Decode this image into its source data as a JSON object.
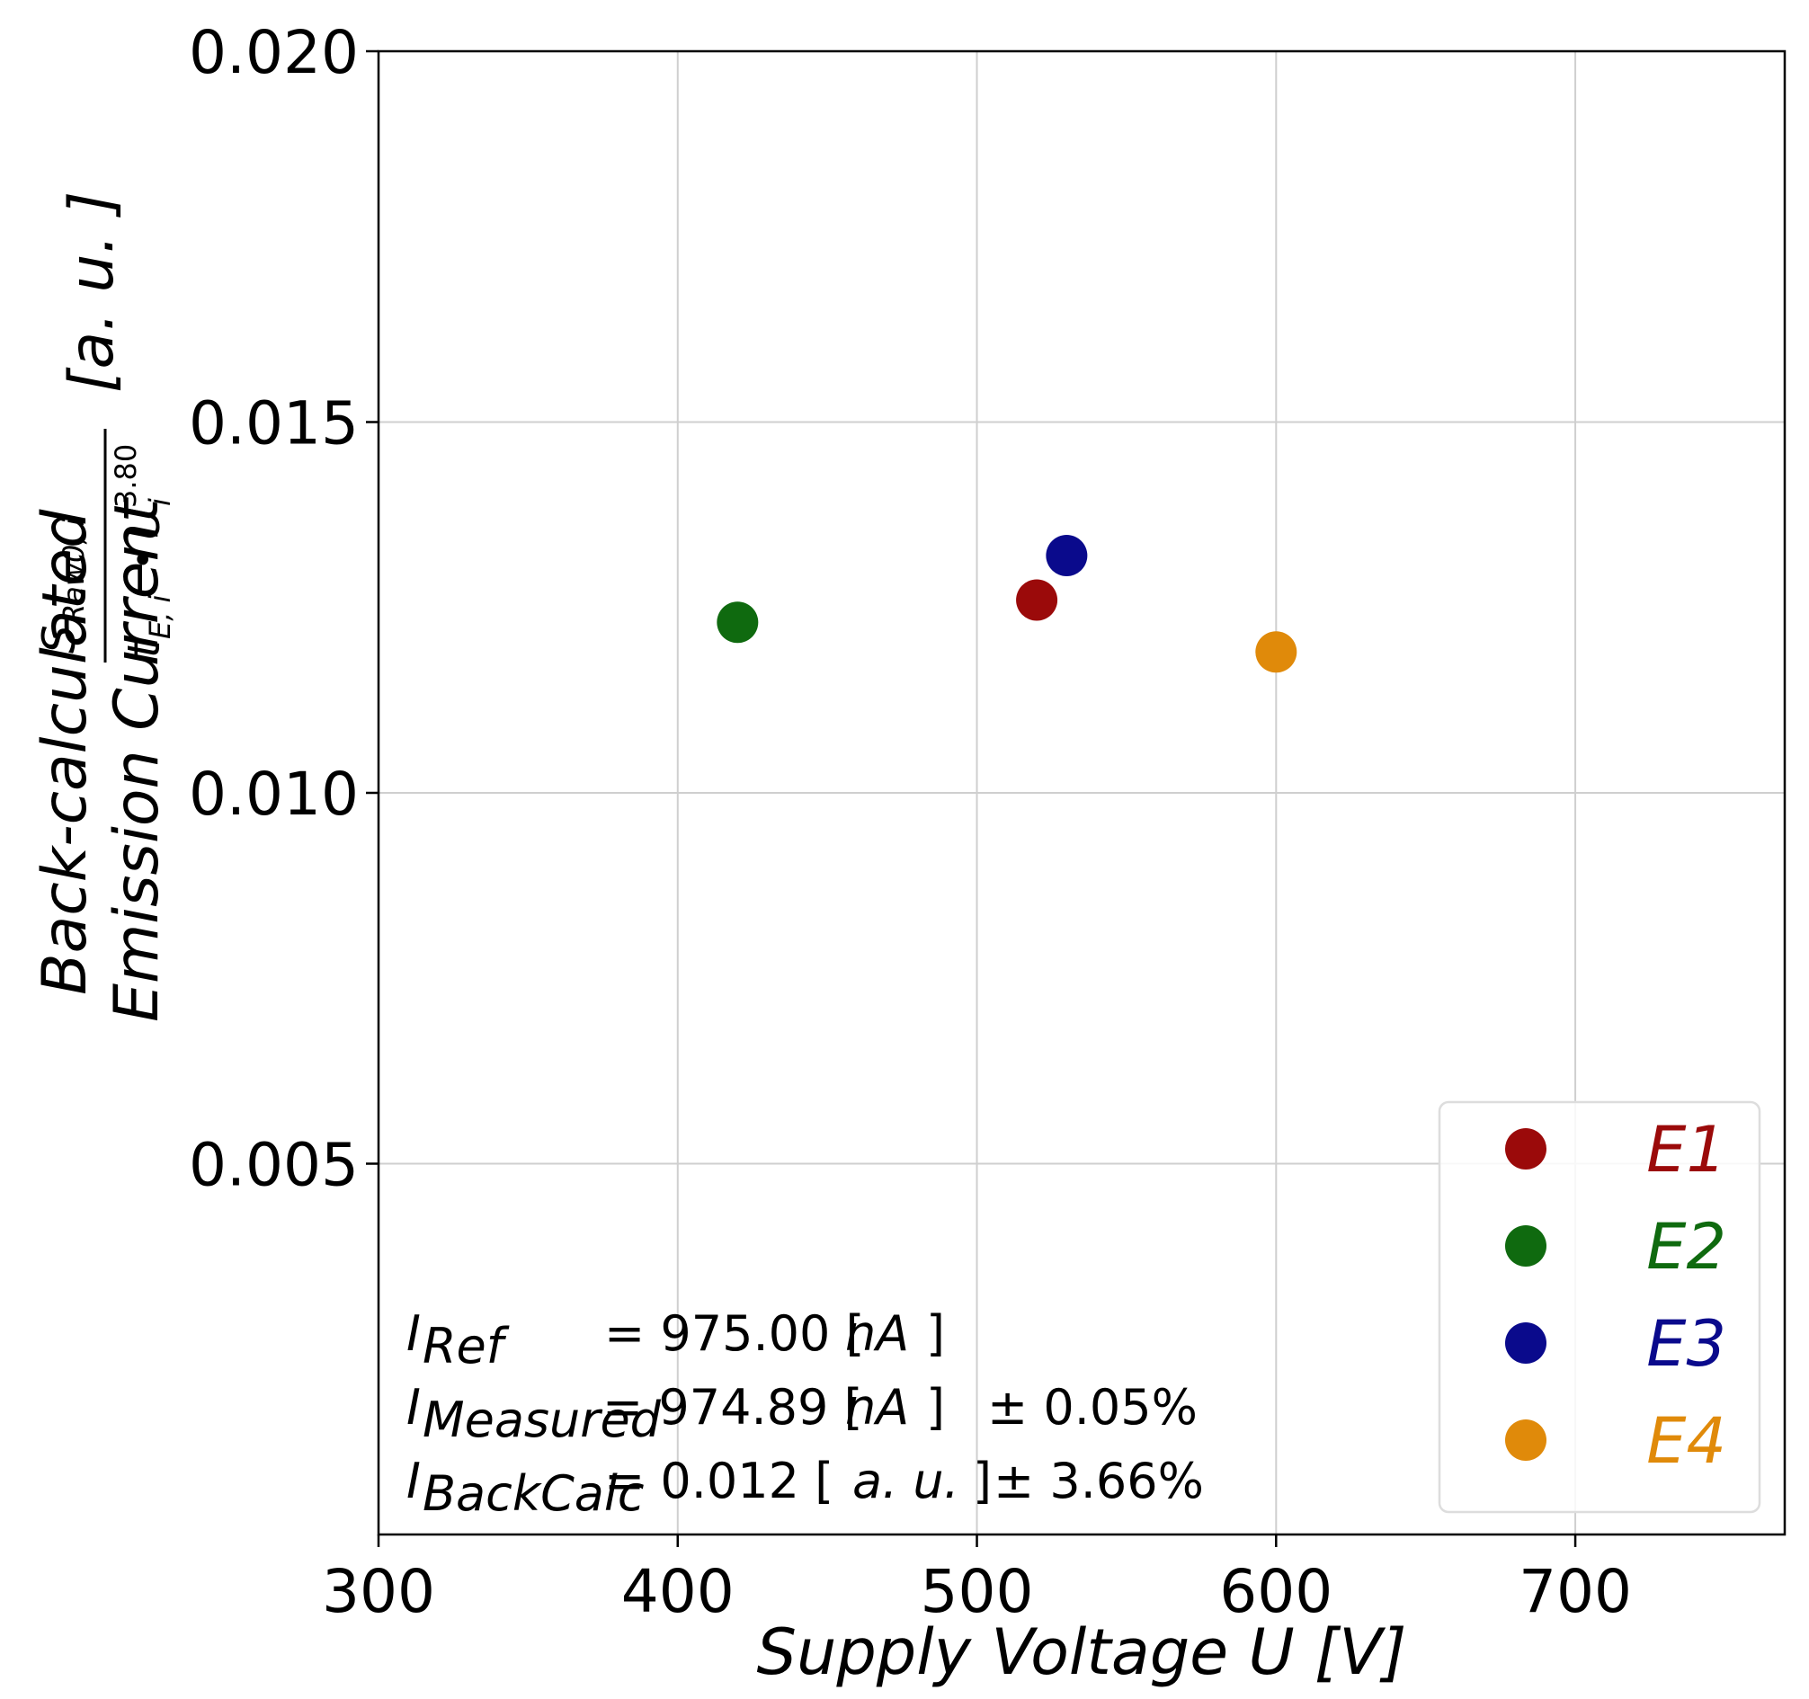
{
  "chart_data": {
    "type": "scatter",
    "xlabel": "Supply Voltage U [V]",
    "ylabel": {
      "line1": "Back-calculated",
      "line2": "Emission Current",
      "fraction_numerator": "S",
      "fraction_numerator_sub": "Raw0, i",
      "fraction_denominator": "t",
      "fraction_denominator_sub": "E, i",
      "fraction_bullet": "•",
      "fraction_U": "U",
      "fraction_U_sub": "i",
      "fraction_U_sup": "3.80",
      "unit": "[a. u. ]"
    },
    "xlim": [
      300,
      770
    ],
    "ylim": [
      0,
      0.02
    ],
    "grid": true,
    "x_ticks": [
      300,
      400,
      500,
      600,
      700
    ],
    "x_tick_labels": [
      "300",
      "400",
      "500",
      "600",
      "700"
    ],
    "y_ticks": [
      0.005,
      0.01,
      0.015,
      0.02
    ],
    "y_tick_labels": [
      "0.005",
      "0.010",
      "0.015",
      "0.020"
    ],
    "series": [
      {
        "name": "E1",
        "color": "#9b0a0a",
        "x": [
          520
        ],
        "y": [
          0.0126
        ]
      },
      {
        "name": "E2",
        "color": "#0f6a0f",
        "x": [
          420
        ],
        "y": [
          0.0123
        ]
      },
      {
        "name": "E3",
        "color": "#0a0a8c",
        "x": [
          530
        ],
        "y": [
          0.0132
        ]
      },
      {
        "name": "E4",
        "color": "#e08a0a",
        "x": [
          600
        ],
        "y": [
          0.0119
        ]
      }
    ],
    "legend_position": "bottom-right",
    "annotations": [
      {
        "symbol": "I",
        "sub": "Ref",
        "eq": "= 975.00 [",
        "unit": "nA",
        "close": "]",
        "tail": ""
      },
      {
        "symbol": "I",
        "sub": "Measured",
        "eq": "= 974.89 [",
        "unit": "nA",
        "close": "]",
        "tail": "± 0.05%"
      },
      {
        "symbol": "I",
        "sub": "BackCalc",
        "eq": "= 0.012  [",
        "unit": "a. u.",
        "close": "]",
        "tail": "± 3.66%"
      }
    ]
  }
}
